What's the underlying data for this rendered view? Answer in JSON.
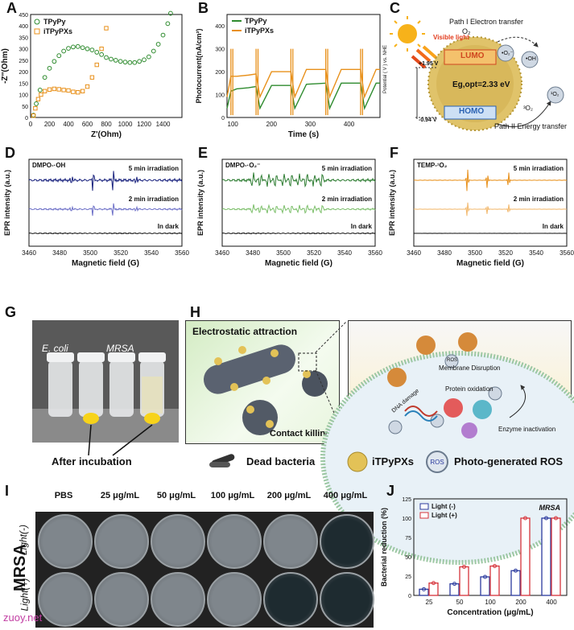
{
  "panels": {
    "A": {
      "label": "A",
      "legend": [
        "TPyPy",
        "iTPyPXs"
      ],
      "xlabel": "Z'(Ohm)",
      "ylabel": "-Z''(Ohm)",
      "xticks": [
        "0",
        "200",
        "400",
        "600",
        "800",
        "1000",
        "1200",
        "1400"
      ],
      "yticks": [
        "0",
        "50",
        "100",
        "150",
        "200",
        "250",
        "300",
        "350",
        "400",
        "450"
      ]
    },
    "B": {
      "label": "B",
      "legend": [
        "TPyPy",
        "iTPyPXs"
      ],
      "xlabel": "Time (s)",
      "ylabel": "Photocurrent(nA/cm²)",
      "xticks": [
        "100",
        "200",
        "300",
        "400"
      ],
      "yticks": [
        "0",
        "100",
        "200",
        "300",
        "400"
      ]
    },
    "C": {
      "label": "C",
      "path1": "Path I  Electron transfer",
      "o2": "O₂",
      "o2rad": "•O₂⁻",
      "oh": "•OH",
      "visible": "Visible light",
      "v1": "+1.95 V",
      "v2": "-0.94 V",
      "lumo": "LUMO",
      "homo": "HOMO",
      "eg": "Eg,opt=2.33 eV",
      "o2t": "³O₂",
      "o2s": "¹O₂",
      "path2": "Path II Energy transfer",
      "axis": "Potential ( V ) vs. NHE"
    },
    "D": {
      "label": "D",
      "tag": "DMPO-·OH",
      "t5": "5 min irradiation",
      "t2": "2 min irradiation",
      "dark": "In dark",
      "xlabel": "Magnetic field (G)",
      "ylabel": "EPR intensity (a.u.)",
      "xticks": [
        "3460",
        "3480",
        "3500",
        "3520",
        "3540",
        "3560"
      ]
    },
    "E": {
      "label": "E",
      "tag": "DMPO-·O₂⁻",
      "t5": "5 min irradiation",
      "t2": "2 min irradiation",
      "dark": "In dark",
      "xlabel": "Magnetic field (G)",
      "ylabel": "EPR intensity (a.u.)",
      "xticks": [
        "3460",
        "3480",
        "3500",
        "3520",
        "3540",
        "3560"
      ]
    },
    "F": {
      "label": "F",
      "tag": "TEMP-¹O₂",
      "t5": "5 min irradiation",
      "t2": "2 min irradiation",
      "dark": "In dark",
      "xlabel": "Magnetic field (G)",
      "ylabel": "EPR intensity (a.u.)",
      "xticks": [
        "3460",
        "3480",
        "3500",
        "3520",
        "3540",
        "3560"
      ]
    },
    "G": {
      "label": "G",
      "ecoli": "E. coli",
      "mrsa": "MRSA",
      "caption": "After incubation"
    },
    "H": {
      "label": "H",
      "attraction": "Electrostatic attraction",
      "contact": "Contact killing",
      "membrane": "Membrane Disruption",
      "protein": "Protein oxidation",
      "dna": "DNA damage",
      "enzyme": "Enzyme inactivation",
      "ros": "ROS",
      "legend_dead": "Dead bacteria",
      "legend_itp": "iTPyPXs",
      "legend_ros": "Photo-generated ROS"
    },
    "I": {
      "label": "I",
      "cols": [
        "PBS",
        "25 μg/mL",
        "50 μg/mL",
        "100 μg/mL",
        "200 μg/mL",
        "400 μg/mL"
      ],
      "rowgroup": "MRSA",
      "rows": [
        "Light(-)",
        "Light(+)"
      ],
      "watermark": "zuoy.net"
    },
    "J": {
      "label": "J",
      "title": "MRSA",
      "legend": [
        "Light (-)",
        "Light (+)"
      ],
      "xlabel": "Concentration (μg/mL)",
      "ylabel": "Bacterial reduction (%)"
    }
  },
  "colors": {
    "green": "#2e8b2e",
    "orange": "#e8901a",
    "navy": "#1a237e",
    "purple": "#6c6fc7",
    "red": "#d6333a",
    "blue": "#2b3a9e"
  },
  "chart_data": [
    {
      "panel": "A",
      "type": "scatter",
      "xlim": [
        0,
        1600
      ],
      "ylim": [
        0,
        450
      ],
      "series": [
        {
          "name": "TPyPy",
          "x": [
            30,
            60,
            100,
            150,
            200,
            250,
            300,
            350,
            400,
            450,
            500,
            550,
            600,
            650,
            700,
            750,
            800,
            850,
            900,
            950,
            1000,
            1050,
            1100,
            1150,
            1200,
            1250,
            1300,
            1350,
            1400,
            1450,
            1480
          ],
          "y": [
            10,
            60,
            120,
            175,
            215,
            245,
            270,
            290,
            302,
            308,
            310,
            305,
            300,
            295,
            285,
            275,
            262,
            255,
            250,
            245,
            242,
            240,
            240,
            245,
            252,
            265,
            290,
            320,
            360,
            410,
            455
          ]
        },
        {
          "name": "iTPyPXs",
          "x": [
            30,
            50,
            80,
            110,
            150,
            200,
            250,
            300,
            350,
            400,
            450,
            500,
            550,
            600,
            650,
            700,
            750,
            800
          ],
          "y": [
            8,
            40,
            80,
            100,
            115,
            122,
            125,
            123,
            120,
            118,
            112,
            110,
            115,
            135,
            175,
            230,
            300,
            390
          ]
        }
      ]
    },
    {
      "panel": "B",
      "type": "line",
      "xlim": [
        85,
        480
      ],
      "ylim": [
        0,
        450
      ],
      "series": [
        {
          "name": "TPyPy",
          "x": [
            85,
            95,
            110,
            140,
            160,
            170,
            200,
            230,
            250,
            260,
            290,
            320,
            340,
            350,
            380,
            410,
            430,
            440,
            470,
            480
          ],
          "y": [
            40,
            115,
            125,
            130,
            135,
            40,
            140,
            140,
            140,
            40,
            145,
            148,
            150,
            40,
            150,
            150,
            150,
            40,
            150,
            150
          ]
        },
        {
          "name": "iTPyPXs",
          "x": [
            85,
            95,
            110,
            140,
            160,
            170,
            200,
            230,
            250,
            260,
            290,
            320,
            340,
            350,
            380,
            410,
            430,
            440,
            470,
            480
          ],
          "y": [
            90,
            180,
            180,
            185,
            190,
            90,
            200,
            200,
            200,
            90,
            210,
            210,
            210,
            90,
            210,
            210,
            210,
            90,
            210,
            210
          ]
        }
      ]
    },
    {
      "panel": "J",
      "type": "bar",
      "categories": [
        "25",
        "50",
        "100",
        "200",
        "400"
      ],
      "ylim": [
        0,
        125
      ],
      "series": [
        {
          "name": "Light (-)",
          "values": [
            8,
            15,
            24,
            32,
            100
          ]
        },
        {
          "name": "Light (+)",
          "values": [
            16,
            37,
            38,
            100,
            100
          ]
        }
      ]
    }
  ]
}
